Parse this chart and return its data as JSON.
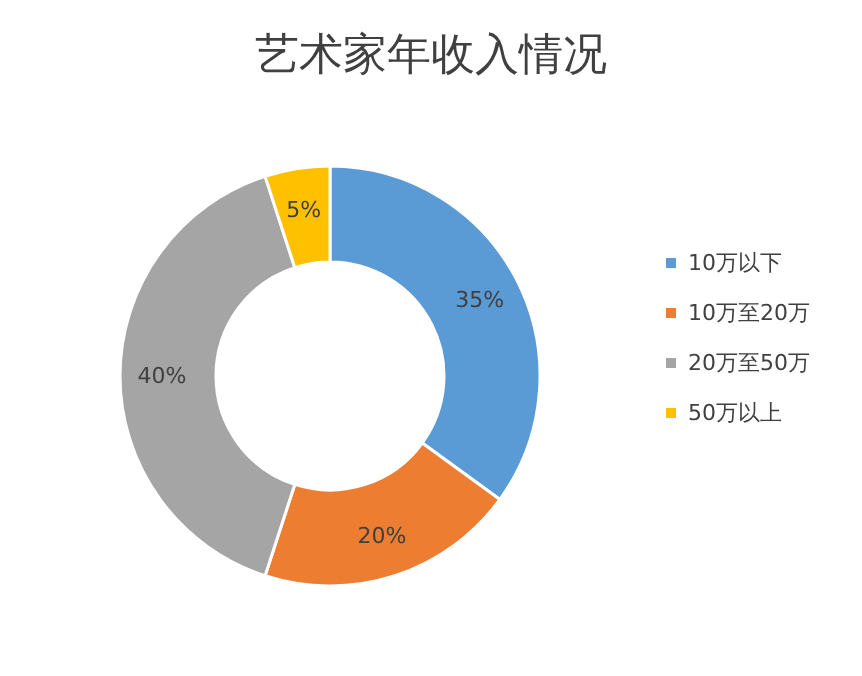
{
  "chart_data": {
    "type": "donut",
    "title": "艺术家年收入情况",
    "categories": [
      "10万以下",
      "10万至20万",
      "20万至50万",
      "50万以上"
    ],
    "values": [
      35,
      20,
      40,
      5
    ],
    "colors": [
      "#5b9bd5",
      "#ed7d31",
      "#a5a5a5",
      "#ffc000"
    ],
    "value_labels": [
      "35%",
      "20%",
      "40%",
      "5%"
    ],
    "legend": "right"
  }
}
